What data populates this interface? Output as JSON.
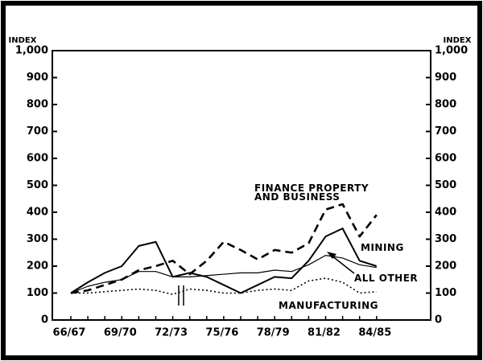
{
  "chart_data": {
    "type": "line",
    "y_label": "INDEX",
    "categories": [
      "66/67",
      null,
      null,
      "69/70",
      null,
      null,
      "72/73",
      null,
      null,
      "75/76",
      null,
      null,
      "78/79",
      null,
      null,
      "81/82",
      null,
      null,
      "84/85"
    ],
    "series": [
      {
        "name": "FINANCE PROPERTY\nAND BUSINESS",
        "color": "#000000",
        "style": "dashed",
        "width": 2.6,
        "values": [
          100,
          110,
          130,
          150,
          185,
          200,
          220,
          170,
          220,
          290,
          260,
          225,
          260,
          250,
          285,
          410,
          430,
          310,
          390
        ]
      },
      {
        "name": "MINING",
        "color": "#000000",
        "style": "solid",
        "width": 2,
        "values": [
          100,
          140,
          175,
          200,
          275,
          290,
          160,
          175,
          160,
          130,
          100,
          130,
          160,
          155,
          220,
          310,
          340,
          220,
          200
        ]
      },
      {
        "name": "ALL OTHER",
        "color": "#000000",
        "style": "solid",
        "width": 1.2,
        "values": [
          100,
          125,
          140,
          150,
          180,
          180,
          160,
          160,
          165,
          170,
          175,
          175,
          185,
          180,
          205,
          240,
          230,
          205,
          195
        ]
      },
      {
        "name": "MANUFACTURING",
        "color": "#000000",
        "style": "dotted",
        "width": 1.6,
        "values": [
          100,
          100,
          105,
          110,
          115,
          110,
          95,
          115,
          110,
          100,
          100,
          110,
          115,
          110,
          145,
          155,
          140,
          100,
          105
        ]
      }
    ],
    "ylim": [
      0,
      1000
    ],
    "yticks": [
      0,
      100,
      200,
      300,
      400,
      500,
      600,
      700,
      800,
      900,
      {
        "value": 1000,
        "label": "1,000"
      }
    ],
    "right_axis": true
  }
}
